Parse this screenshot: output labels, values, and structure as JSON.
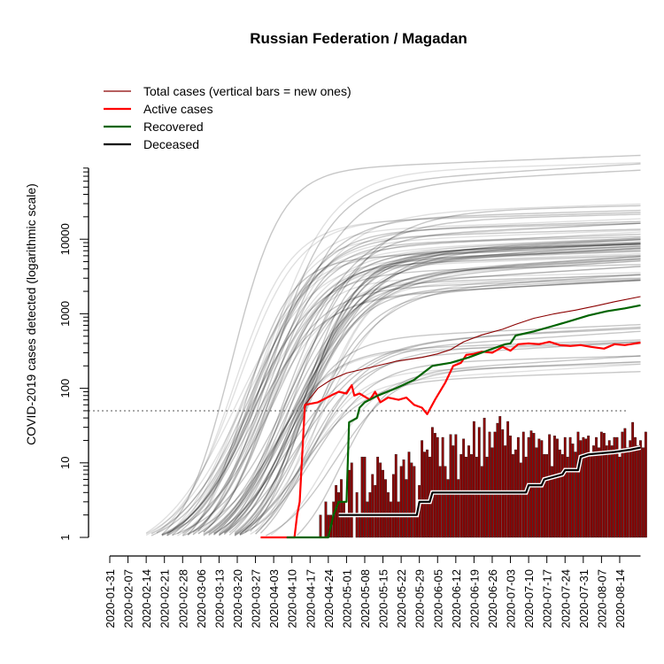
{
  "chart_data": {
    "type": "line",
    "title": "Russian Federation / Magadan",
    "ylabel": "COVID-2019 cases detected (logarithmic scale)",
    "xlabel": "",
    "yscale": "log",
    "ylim": [
      1,
      100000
    ],
    "y_ticks": [
      1,
      10,
      100,
      1000,
      10000
    ],
    "y_tick_labels": [
      "1",
      "10",
      "100",
      "1000",
      "10000"
    ],
    "x_range": [
      "2020-01-31",
      "2020-08-22"
    ],
    "x_tick_labels": [
      "2020-01-31",
      "2020-02-07",
      "2020-02-14",
      "2020-02-21",
      "2020-02-28",
      "2020-03-06",
      "2020-03-13",
      "2020-03-20",
      "2020-03-27",
      "2020-04-03",
      "2020-04-10",
      "2020-04-17",
      "2020-04-24",
      "2020-05-01",
      "2020-05-08",
      "2020-05-15",
      "2020-05-22",
      "2020-05-29",
      "2020-06-05",
      "2020-06-12",
      "2020-06-19",
      "2020-06-26",
      "2020-07-03",
      "2020-07-10",
      "2020-07-17",
      "2020-07-24",
      "2020-07-31",
      "2020-08-07",
      "2020-08-14"
    ],
    "threshold": 50,
    "legend_position": "top-left",
    "legend": [
      {
        "label": "Total cases (vertical bars = new ones)",
        "color": "#8b0000"
      },
      {
        "label": "Active cases",
        "color": "#ff0000"
      },
      {
        "label": "Recovered",
        "color": "#006400"
      },
      {
        "label": "Deceased",
        "color": "#000000"
      }
    ],
    "series": [
      {
        "name": "Total cases (vertical bars = new ones)",
        "color": "#8b0000",
        "points": [
          [
            "2020-04-15",
            60
          ],
          [
            "2020-04-20",
            100
          ],
          [
            "2020-04-25",
            130
          ],
          [
            "2020-05-01",
            160
          ],
          [
            "2020-05-10",
            190
          ],
          [
            "2020-05-20",
            230
          ],
          [
            "2020-05-30",
            260
          ],
          [
            "2020-06-05",
            290
          ],
          [
            "2020-06-10",
            330
          ],
          [
            "2020-06-15",
            420
          ],
          [
            "2020-06-22",
            520
          ],
          [
            "2020-06-30",
            620
          ],
          [
            "2020-07-05",
            720
          ],
          [
            "2020-07-12",
            870
          ],
          [
            "2020-07-20",
            1000
          ],
          [
            "2020-07-28",
            1120
          ],
          [
            "2020-08-05",
            1280
          ],
          [
            "2020-08-12",
            1450
          ],
          [
            "2020-08-22",
            1700
          ]
        ]
      },
      {
        "name": "Active cases",
        "color": "#ff0000",
        "points": [
          [
            "2020-03-29",
            1
          ],
          [
            "2020-04-08",
            1
          ],
          [
            "2020-04-11",
            1
          ],
          [
            "2020-04-12",
            2
          ],
          [
            "2020-04-13",
            3
          ],
          [
            "2020-04-15",
            60
          ],
          [
            "2020-04-20",
            65
          ],
          [
            "2020-04-25",
            80
          ],
          [
            "2020-04-28",
            90
          ],
          [
            "2020-05-01",
            85
          ],
          [
            "2020-05-03",
            110
          ],
          [
            "2020-05-04",
            80
          ],
          [
            "2020-05-06",
            85
          ],
          [
            "2020-05-10",
            70
          ],
          [
            "2020-05-12",
            90
          ],
          [
            "2020-05-14",
            65
          ],
          [
            "2020-05-17",
            75
          ],
          [
            "2020-05-21",
            70
          ],
          [
            "2020-05-24",
            75
          ],
          [
            "2020-05-27",
            60
          ],
          [
            "2020-05-30",
            55
          ],
          [
            "2020-06-01",
            45
          ],
          [
            "2020-06-04",
            70
          ],
          [
            "2020-06-08",
            120
          ],
          [
            "2020-06-11",
            200
          ],
          [
            "2020-06-14",
            220
          ],
          [
            "2020-06-16",
            280
          ],
          [
            "2020-06-19",
            290
          ],
          [
            "2020-06-22",
            310
          ],
          [
            "2020-06-26",
            300
          ],
          [
            "2020-06-30",
            360
          ],
          [
            "2020-07-03",
            320
          ],
          [
            "2020-07-06",
            390
          ],
          [
            "2020-07-10",
            400
          ],
          [
            "2020-07-14",
            390
          ],
          [
            "2020-07-18",
            420
          ],
          [
            "2020-07-22",
            380
          ],
          [
            "2020-07-26",
            370
          ],
          [
            "2020-07-30",
            380
          ],
          [
            "2020-08-03",
            360
          ],
          [
            "2020-08-08",
            340
          ],
          [
            "2020-08-12",
            390
          ],
          [
            "2020-08-16",
            380
          ],
          [
            "2020-08-22",
            410
          ]
        ]
      },
      {
        "name": "Recovered",
        "color": "#006400",
        "points": [
          [
            "2020-04-08",
            1
          ],
          [
            "2020-04-24",
            1
          ],
          [
            "2020-04-26",
            2
          ],
          [
            "2020-04-28",
            3
          ],
          [
            "2020-05-01",
            3
          ],
          [
            "2020-05-02",
            35
          ],
          [
            "2020-05-05",
            40
          ],
          [
            "2020-05-06",
            55
          ],
          [
            "2020-05-08",
            65
          ],
          [
            "2020-05-13",
            80
          ],
          [
            "2020-05-20",
            100
          ],
          [
            "2020-05-27",
            130
          ],
          [
            "2020-06-03",
            200
          ],
          [
            "2020-06-10",
            220
          ],
          [
            "2020-06-17",
            260
          ],
          [
            "2020-06-24",
            320
          ],
          [
            "2020-07-01",
            390
          ],
          [
            "2020-07-03",
            400
          ],
          [
            "2020-07-05",
            510
          ],
          [
            "2020-07-12",
            580
          ],
          [
            "2020-07-19",
            680
          ],
          [
            "2020-07-26",
            800
          ],
          [
            "2020-08-02",
            950
          ],
          [
            "2020-08-09",
            1080
          ],
          [
            "2020-08-16",
            1180
          ],
          [
            "2020-08-22",
            1300
          ]
        ]
      },
      {
        "name": "Deceased",
        "color": "#000000",
        "points": [
          [
            "2020-04-28",
            2
          ],
          [
            "2020-05-28",
            2
          ],
          [
            "2020-05-29",
            3
          ],
          [
            "2020-06-02",
            3
          ],
          [
            "2020-06-03",
            4
          ],
          [
            "2020-07-09",
            4
          ],
          [
            "2020-07-10",
            5
          ],
          [
            "2020-07-15",
            5
          ],
          [
            "2020-07-16",
            6
          ],
          [
            "2020-07-23",
            7
          ],
          [
            "2020-07-24",
            8
          ],
          [
            "2020-07-29",
            8
          ],
          [
            "2020-07-30",
            12
          ],
          [
            "2020-08-02",
            13
          ],
          [
            "2020-08-12",
            14
          ],
          [
            "2020-08-18",
            15
          ],
          [
            "2020-08-22",
            16
          ]
        ]
      }
    ],
    "new_cases_bars": {
      "name": "new cases",
      "color": "#8b0000",
      "start": "2020-04-21",
      "values": [
        2,
        1,
        3,
        2,
        2,
        3,
        5,
        4,
        6,
        3,
        2,
        8,
        10,
        1,
        4,
        2,
        12,
        12,
        3,
        4,
        7,
        5,
        12,
        10,
        8,
        6,
        4,
        3,
        7,
        13,
        3,
        9,
        11,
        6,
        14,
        10,
        9,
        2,
        5,
        20,
        14,
        15,
        12,
        30,
        25,
        22,
        9,
        22,
        9,
        6,
        24,
        17,
        24,
        6,
        13,
        21,
        12,
        17,
        13,
        36,
        12,
        30,
        9,
        40,
        12,
        26,
        16,
        26,
        34,
        42,
        28,
        17,
        36,
        23,
        13,
        15,
        22,
        10,
        26,
        12,
        22,
        27,
        25,
        16,
        21,
        20,
        13,
        13,
        24,
        9,
        23,
        21,
        15,
        13,
        22,
        12,
        22,
        18,
        14,
        26,
        20,
        22,
        21,
        23,
        13,
        17,
        22,
        16,
        26,
        25,
        17,
        20,
        17,
        22,
        22,
        12,
        26,
        29,
        16,
        20,
        35,
        22,
        17,
        20,
        16,
        26
      ]
    }
  }
}
